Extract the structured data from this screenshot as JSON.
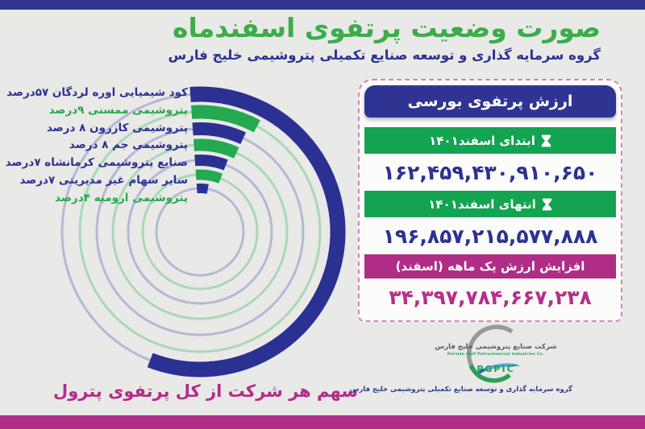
{
  "page": {
    "bg_color": "#e9e9e7",
    "top_bar_color": "#32368f",
    "bottom_bar_color": "#b02d87"
  },
  "header": {
    "title": "صورت وضعیت پرتفوی اسفندماه",
    "subtitle": "گروه سرمایه گذاری و توسعه صنایع تکمیلی پتروشیمی خلیج فارس",
    "title_color": "#3bad4b",
    "subtitle_color": "#2d3191"
  },
  "chart_data": {
    "type": "radial-bar",
    "title": "سهم هر شرکت از کل پرتفوی پترول",
    "unit_word": "درصد",
    "start_angle_deg": -4,
    "direction": "clockwise",
    "series": [
      {
        "text": "کود شیمیایی اوره لردگان ۵۷درصد",
        "label": "کود شیمیایی اوره لردگان",
        "value": 57,
        "arc_color": "#2b3093",
        "track_color": "#b7b7d6",
        "label_color": "#2d3191"
      },
      {
        "text": "پتروشیمی ممسنی ۹درصد",
        "label": "پتروشیمی ممسنی",
        "value": 9,
        "arc_color": "#23a94f",
        "track_color": "#a9d8b8",
        "label_color": "#2aa84f"
      },
      {
        "text": "پتروشیمی کازرون ۸ درصد",
        "label": "پتروشیمی کازرون",
        "value": 8,
        "arc_color": "#2b3093",
        "track_color": "#b7b7d6",
        "label_color": "#2d3191"
      },
      {
        "text": "پتروشیمی جم ۸ درصد",
        "label": "پتروشیمی جم",
        "value": 8,
        "arc_color": "#23a94f",
        "track_color": "#a9d8b8",
        "label_color": "#2d3191"
      },
      {
        "text": "صنایع پتروشیمی کرمانشاه ۷درصد",
        "label": "صنایع پتروشیمی کرمانشاه",
        "value": 7,
        "arc_color": "#2b3093",
        "track_color": "#b7b7d6",
        "label_color": "#2d3191"
      },
      {
        "text": "سایر سهام غیر مدیریتی ۷درصد",
        "label": "سایر سهام غیر مدیریتی",
        "value": 7,
        "arc_color": "#23a94f",
        "track_color": "#a9d8b8",
        "label_color": "#2d3191"
      },
      {
        "text": "پتروشیمی ارومیه ۴درصد",
        "label": "پتروشیمی ارومیه",
        "value": 4,
        "arc_color": "#2b3093",
        "track_color": "#b7b7d6",
        "label_color": "#2aa84f"
      }
    ]
  },
  "panel": {
    "title": "ارزش پرتفوی بورسی",
    "rows": [
      {
        "label": "ابتدای اسفند۱۴۰۱",
        "value": "۱۶۲,۴۵۹,۴۳۰,۹۱۰,۶۵۰",
        "bar_color": "#14a351",
        "value_color": "#2d3191",
        "icon": "hourglass-icon"
      },
      {
        "label": "انتهای اسفند۱۴۰۱",
        "value": "۱۹۶,۸۵۷,۲۱۵,۵۷۷,۸۸۸",
        "bar_color": "#14a351",
        "value_color": "#2d3191",
        "icon": "hourglass-icon"
      },
      {
        "label": "افزایش ارزش یک ماهه (اسفند)",
        "value": "۳۴,۳۹۷,۷۸۴,۶۶۷,۲۳۸",
        "bar_color": "#b02d87",
        "value_color": "#b5308a",
        "icon": null
      }
    ]
  },
  "logo": {
    "company_fa": "شرکت صنایع پتروشیمی خلیج فارس",
    "company_en": "Persian Gulf Petrochemical Industries Co.",
    "pgpic": "PGPIC",
    "group_fa": "گروه سرمایه گذاری و توسعه صنایع تکمیلی پتروشیمی خلیج فارس"
  }
}
